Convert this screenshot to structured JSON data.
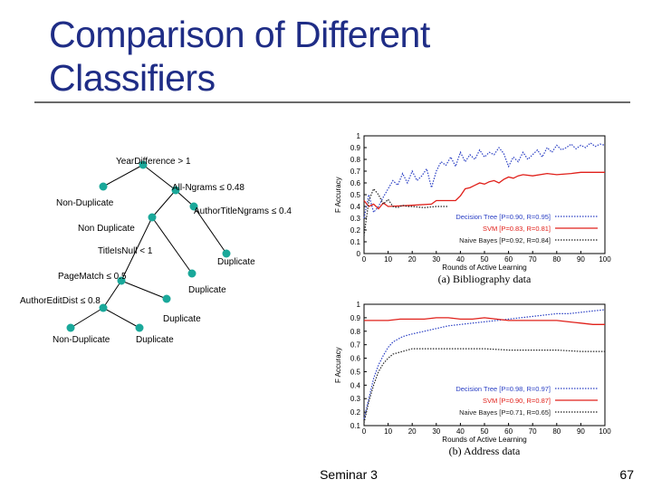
{
  "slide": {
    "title_line1": "Comparison of Different",
    "title_line2": "Classifiers",
    "footer": "Seminar 3",
    "page_number": "67",
    "title_color": "#1f2d86"
  },
  "tree": {
    "node_color": "#1aa89a",
    "labels": {
      "root": "YearDifference > 1",
      "ngrams": "All-Ngrams ≤ 0.48",
      "nondup1": "Non-Duplicate",
      "author_title": "AuthorTitleNgrams ≤ 0.4",
      "nondup2": "Non Duplicate",
      "title_null": "TitleIsNull < 1",
      "dup1": "Duplicate",
      "page_match": "PageMatch ≤ 0.5",
      "dup2": "Duplicate",
      "author_edit": "AuthorEditDist ≤ 0.8",
      "dup3": "Duplicate",
      "nondup3": "Non-Duplicate",
      "dup4": "Duplicate"
    }
  },
  "chart_data": [
    {
      "type": "line",
      "caption": "(a) Bibliography data",
      "xlabel": "Rounds of Active Learning",
      "ylabel": "F Accuracy",
      "xlim": [
        0,
        100
      ],
      "ylim": [
        0,
        1
      ],
      "xticks": [
        "0",
        "10",
        "20",
        "30",
        "40",
        "50",
        "60",
        "70",
        "80",
        "90",
        "100"
      ],
      "yticks": [
        "0",
        "0.1",
        "0.2",
        "0.3",
        "0.4",
        "0.5",
        "0.6",
        "0.7",
        "0.8",
        "0.9",
        "1"
      ],
      "legend_position": "bottom-right",
      "series": [
        {
          "name": "Decision Tree [P=0.90, R=0.95]",
          "color": "#2a3fc4",
          "style": "dotted",
          "x": [
            0,
            2,
            4,
            6,
            8,
            10,
            12,
            14,
            16,
            18,
            20,
            22,
            24,
            26,
            28,
            30,
            32,
            34,
            36,
            38,
            40,
            42,
            44,
            46,
            48,
            50,
            52,
            54,
            56,
            58,
            60,
            62,
            64,
            66,
            68,
            70,
            72,
            74,
            76,
            78,
            80,
            82,
            84,
            86,
            88,
            90,
            92,
            94,
            96,
            98,
            100
          ],
          "y": [
            0.3,
            0.5,
            0.35,
            0.4,
            0.48,
            0.55,
            0.62,
            0.58,
            0.68,
            0.6,
            0.7,
            0.62,
            0.66,
            0.72,
            0.56,
            0.7,
            0.78,
            0.75,
            0.82,
            0.74,
            0.86,
            0.78,
            0.84,
            0.8,
            0.88,
            0.82,
            0.86,
            0.84,
            0.9,
            0.85,
            0.74,
            0.82,
            0.78,
            0.86,
            0.8,
            0.84,
            0.88,
            0.82,
            0.9,
            0.86,
            0.92,
            0.88,
            0.9,
            0.93,
            0.89,
            0.92,
            0.9,
            0.94,
            0.91,
            0.93,
            0.92
          ]
        },
        {
          "name": "SVM [P=0.83, R=0.81]",
          "color": "#e0201a",
          "style": "solid",
          "x": [
            0,
            2,
            4,
            6,
            8,
            10,
            20,
            28,
            30,
            38,
            40,
            42,
            44,
            46,
            48,
            50,
            52,
            54,
            56,
            58,
            60,
            62,
            64,
            66,
            70,
            76,
            80,
            86,
            90,
            96,
            100
          ],
          "y": [
            0.45,
            0.4,
            0.42,
            0.38,
            0.43,
            0.4,
            0.41,
            0.42,
            0.45,
            0.45,
            0.49,
            0.55,
            0.56,
            0.58,
            0.6,
            0.59,
            0.61,
            0.62,
            0.6,
            0.63,
            0.65,
            0.64,
            0.66,
            0.67,
            0.66,
            0.68,
            0.67,
            0.68,
            0.69,
            0.69,
            0.69
          ]
        },
        {
          "name": "Naive Bayes [P=0.92, R=0.84]",
          "color": "#222222",
          "style": "dotted",
          "x": [
            0,
            2,
            4,
            6,
            8,
            10,
            12,
            14,
            16,
            18,
            20,
            25,
            30,
            35
          ],
          "y": [
            0.15,
            0.45,
            0.55,
            0.5,
            0.42,
            0.46,
            0.4,
            0.39,
            0.41,
            0.4,
            0.4,
            0.39,
            0.4,
            0.4
          ]
        }
      ]
    },
    {
      "type": "line",
      "caption": "(b) Address data",
      "xlabel": "Rounds of Active Learning",
      "ylabel": "F Accuracy",
      "xlim": [
        0,
        100
      ],
      "ylim": [
        0.1,
        1
      ],
      "xticks": [
        "0",
        "10",
        "20",
        "30",
        "40",
        "50",
        "60",
        "70",
        "80",
        "90",
        "100"
      ],
      "yticks": [
        "0.1",
        "0.2",
        "0.3",
        "0.4",
        "0.5",
        "0.6",
        "0.7",
        "0.8",
        "0.9",
        "1"
      ],
      "legend_position": "bottom-right",
      "series": [
        {
          "name": "Decision Tree [P=0.98, R=0.97]",
          "color": "#2a3fc4",
          "style": "dotted",
          "x": [
            0,
            2,
            4,
            6,
            8,
            10,
            12,
            14,
            16,
            18,
            20,
            25,
            30,
            35,
            40,
            45,
            50,
            55,
            60,
            65,
            70,
            75,
            80,
            85,
            90,
            95,
            100
          ],
          "y": [
            0.15,
            0.3,
            0.45,
            0.55,
            0.62,
            0.68,
            0.72,
            0.74,
            0.76,
            0.77,
            0.78,
            0.8,
            0.82,
            0.84,
            0.85,
            0.86,
            0.87,
            0.88,
            0.89,
            0.9,
            0.91,
            0.92,
            0.93,
            0.93,
            0.94,
            0.95,
            0.96
          ]
        },
        {
          "name": "SVM [P=0.90, R=0.87]",
          "color": "#e0201a",
          "style": "solid",
          "x": [
            0,
            5,
            10,
            15,
            20,
            25,
            30,
            35,
            40,
            45,
            50,
            55,
            60,
            65,
            70,
            75,
            80,
            85,
            90,
            95,
            100
          ],
          "y": [
            0.88,
            0.88,
            0.88,
            0.89,
            0.89,
            0.89,
            0.9,
            0.9,
            0.89,
            0.89,
            0.9,
            0.89,
            0.88,
            0.88,
            0.88,
            0.88,
            0.88,
            0.87,
            0.86,
            0.85,
            0.85
          ]
        },
        {
          "name": "Naive Bayes [P=0.71, R=0.65]",
          "color": "#222222",
          "style": "dotted",
          "x": [
            0,
            2,
            4,
            6,
            8,
            10,
            12,
            14,
            16,
            18,
            20,
            25,
            30,
            40,
            50,
            60,
            70,
            80,
            90,
            100
          ],
          "y": [
            0.12,
            0.28,
            0.4,
            0.5,
            0.56,
            0.6,
            0.63,
            0.64,
            0.65,
            0.66,
            0.67,
            0.67,
            0.67,
            0.67,
            0.67,
            0.66,
            0.66,
            0.66,
            0.65,
            0.65
          ]
        }
      ]
    }
  ]
}
